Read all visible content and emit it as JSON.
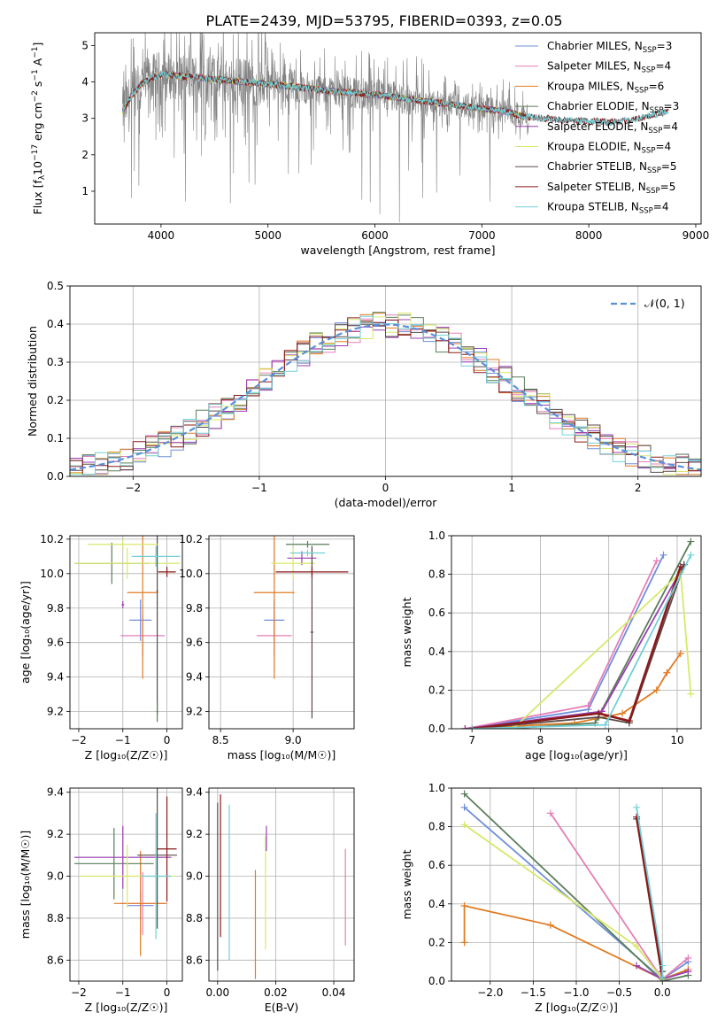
{
  "title": "PLATE=2439, MJD=53795, FIBERID=0393, z=0.05",
  "colors": {
    "Chabrier MILES": "#6f8fdc",
    "Salpeter MILES": "#e57fb7",
    "Kroupa MILES": "#e07b22",
    "Chabrier ELODIE": "#5a7d5a",
    "Salpeter ELODIE": "#9a3fb0",
    "Kroupa ELODIE": "#d8e86a",
    "Chabrier STELIB": "#5b4b4b",
    "Salpeter STELIB": "#8b1a1a",
    "Kroupa STELIB": "#72d0d6",
    "data": "#808080",
    "normal": "#5b8fd8"
  },
  "chart_data": [
    {
      "id": "spectrum",
      "type": "line",
      "xlabel": "wavelength [Angstrom, rest frame]",
      "ylabel_pre": "Flux [f",
      "ylabel_sub": "λ",
      "ylabel_post": "10",
      "ylabel_sup": "−17",
      "ylabel_tail": " erg cm",
      "ylabel_sup2": "−2",
      "ylabel_tail2": " s",
      "ylabel_sup3": "−1",
      "ylabel_tail3": " A",
      "ylabel_sup4": "−1",
      "ylabel_end": "]",
      "xlim": [
        3380,
        9050
      ],
      "ylim": [
        0.1,
        5.35
      ],
      "xticks": [
        4000,
        5000,
        6000,
        7000,
        8000,
        9000
      ],
      "xtick_labels": [
        "4000",
        "5000",
        "6000",
        "7000",
        "8000",
        "9000"
      ],
      "yticks": [
        1,
        2,
        3,
        4,
        5
      ],
      "ytick_labels": [
        "1",
        "2",
        "3",
        "4",
        "5"
      ],
      "continuum": [
        [
          3640,
          3.2
        ],
        [
          3700,
          3.5
        ],
        [
          3800,
          3.9
        ],
        [
          3900,
          4.1
        ],
        [
          4000,
          4.2
        ],
        [
          4200,
          4.15
        ],
        [
          4400,
          4.1
        ],
        [
          4600,
          4.05
        ],
        [
          4800,
          4.0
        ],
        [
          5000,
          3.95
        ],
        [
          5300,
          3.85
        ],
        [
          5600,
          3.75
        ],
        [
          6000,
          3.65
        ],
        [
          6400,
          3.5
        ],
        [
          6800,
          3.35
        ],
        [
          7200,
          3.2
        ],
        [
          7400,
          3.05
        ],
        [
          7800,
          2.95
        ],
        [
          8200,
          2.9
        ],
        [
          8400,
          2.95
        ],
        [
          8750,
          3.2
        ]
      ],
      "data_range": [
        3640,
        7440
      ],
      "models": [
        {
          "name": "Chabrier MILES",
          "label_pre": "Chabrier MILES, N",
          "label_sub": "SSP",
          "label_post": "=3"
        },
        {
          "name": "Salpeter MILES",
          "label_pre": "Salpeter MILES, N",
          "label_sub": "SSP",
          "label_post": "=4"
        },
        {
          "name": "Kroupa MILES",
          "label_pre": "Kroupa MILES, N",
          "label_sub": "SSP",
          "label_post": "=6"
        },
        {
          "name": "Chabrier ELODIE",
          "label_pre": "Chabrier ELODIE, N",
          "label_sub": "SSP",
          "label_post": "=3"
        },
        {
          "name": "Salpeter ELODIE",
          "label_pre": "Salpeter ELODIE, N",
          "label_sub": "SSP",
          "label_post": "=4"
        },
        {
          "name": "Kroupa ELODIE",
          "label_pre": "Kroupa ELODIE, N",
          "label_sub": "SSP",
          "label_post": "=4"
        },
        {
          "name": "Chabrier STELIB",
          "label_pre": "Chabrier STELIB, N",
          "label_sub": "SSP",
          "label_post": "=5"
        },
        {
          "name": "Salpeter STELIB",
          "label_pre": "Salpeter STELIB, N",
          "label_sub": "SSP",
          "label_post": "=5"
        },
        {
          "name": "Kroupa STELIB",
          "label_pre": "Kroupa STELIB, N",
          "label_sub": "SSP",
          "label_post": "=4"
        }
      ],
      "legend_placement": "right"
    },
    {
      "id": "residuals",
      "type": "histogram",
      "xlabel": "(data-model)/error",
      "ylabel": "Normed distribution",
      "xlim": [
        -2.5,
        2.5
      ],
      "ylim": [
        0,
        0.5
      ],
      "xticks": [
        -2,
        -1,
        0,
        1,
        2
      ],
      "xtick_labels": [
        "−2",
        "−1",
        "0",
        "1",
        "2"
      ],
      "yticks": [
        0,
        0.1,
        0.2,
        0.3,
        0.4,
        0.5
      ],
      "ytick_labels": [
        "0.0",
        "0.1",
        "0.2",
        "0.3",
        "0.4",
        "0.5"
      ],
      "grid": true,
      "bin_width": 0.1,
      "normal_curve": {
        "mean": 0,
        "sigma": 1,
        "label": "𝒩(0, 1)"
      },
      "legend_placement": "top-right"
    },
    {
      "id": "age-vs-Z",
      "type": "scatter",
      "xlabel": "Z [log₁₀(Z/Z☉)]",
      "ylabel": "age  [log₁₀(age/yr)]",
      "xlim": [
        -2.2,
        0.35
      ],
      "ylim": [
        9.1,
        10.22
      ],
      "xticks": [
        -2,
        -1,
        0
      ],
      "xtick_labels": [
        "−2",
        "−1",
        "0"
      ],
      "yticks": [
        9.2,
        9.4,
        9.6,
        9.8,
        10.0,
        10.2
      ],
      "ytick_labels": [
        "9.2",
        "9.4",
        "9.6",
        "9.8",
        "10.0",
        "10.2"
      ],
      "grid": true,
      "points": [
        {
          "model": "Chabrier MILES",
          "x": -0.6,
          "xerr": 0.25,
          "y": 9.73,
          "yerr": 0.12
        },
        {
          "model": "Salpeter MILES",
          "x": -0.55,
          "xerr": 0.5,
          "y": 9.64,
          "yerr": 0.12
        },
        {
          "model": "Kroupa MILES",
          "x": -0.55,
          "xerr": 0.35,
          "y": 9.89,
          "yerr": 0.5
        },
        {
          "model": "Chabrier ELODIE",
          "x": -1.25,
          "xerr": 0.85,
          "y": 10.06,
          "yerr": 0.12
        },
        {
          "model": "Salpeter ELODIE",
          "x": -1.0,
          "xerr": 0.03,
          "y": 9.82,
          "yerr": 0.02
        },
        {
          "model": "Kroupa ELODIE",
          "x": -0.9,
          "xerr": 1.2,
          "y": 10.06,
          "yerr": 0.09
        },
        {
          "model": "Chabrier STELIB",
          "x": -0.22,
          "xerr": 0.02,
          "y": 9.9,
          "yerr": 0.72
        },
        {
          "model": "Salpeter STELIB",
          "x": 0.0,
          "xerr": 0.2,
          "y": 10.01,
          "yerr": 0.03
        },
        {
          "model": "Kroupa STELIB",
          "x": -0.25,
          "xerr": 0.55,
          "y": 10.1,
          "yerr": 0.06
        },
        {
          "model": "Chabrier ELODIE",
          "x": -0.22,
          "xerr": 0.02,
          "y": 9.2,
          "yerr": 0.06
        },
        {
          "model": "Kroupa ELODIE",
          "x": -1.0,
          "xerr": 0.8,
          "y": 10.17,
          "yerr": 0.03
        }
      ]
    },
    {
      "id": "age-vs-mass",
      "type": "scatter",
      "xlabel": "mass [log₁₀(M/M☉)]",
      "ylabel": "",
      "xlim": [
        8.42,
        9.42
      ],
      "ylim": [
        9.1,
        10.22
      ],
      "xticks": [
        8.5,
        9.0
      ],
      "xtick_labels": [
        "8.5",
        "9.0"
      ],
      "yticks": [
        9.2,
        9.4,
        9.6,
        9.8,
        10.0,
        10.2
      ],
      "ytick_labels": [
        "9.2",
        "9.4",
        "9.6",
        "9.8",
        "10.0",
        "10.2"
      ],
      "grid": true,
      "points": [
        {
          "model": "Chabrier MILES",
          "x": 8.87,
          "xerr": 0.07,
          "y": 9.73,
          "yerr": 0.12
        },
        {
          "model": "Salpeter MILES",
          "x": 8.87,
          "xerr": 0.12,
          "y": 9.64,
          "yerr": 0.12
        },
        {
          "model": "Kroupa MILES",
          "x": 8.87,
          "xerr": 0.14,
          "y": 9.89,
          "yerr": 0.5
        },
        {
          "model": "Chabrier ELODIE",
          "x": 9.1,
          "xerr": 0.15,
          "y": 10.17,
          "yerr": 0.02
        },
        {
          "model": "Salpeter ELODIE",
          "x": 9.06,
          "xerr": 0.1,
          "y": 10.09,
          "yerr": 0.04
        },
        {
          "model": "Kroupa ELODIE",
          "x": 9.0,
          "xerr": 0.15,
          "y": 10.06,
          "yerr": 0.09
        },
        {
          "model": "Chabrier STELIB",
          "x": 9.13,
          "xerr": 0.01,
          "y": 9.66,
          "yerr": 0.5
        },
        {
          "model": "Salpeter STELIB",
          "x": 9.13,
          "xerr": 0.25,
          "y": 10.01,
          "yerr": 0.03
        },
        {
          "model": "Kroupa STELIB",
          "x": 9.1,
          "xerr": 0.12,
          "y": 10.12,
          "yerr": 0.02
        }
      ]
    },
    {
      "id": "weight-vs-age",
      "type": "line",
      "xlabel": "age  [log₁₀(age/yr)]",
      "ylabel": "mass weight",
      "xlim": [
        6.7,
        10.35
      ],
      "ylim": [
        0,
        1
      ],
      "xticks": [
        7,
        8,
        9,
        10
      ],
      "xtick_labels": [
        "7",
        "8",
        "9",
        "10"
      ],
      "yticks": [
        0,
        0.2,
        0.4,
        0.6,
        0.8,
        1.0
      ],
      "ytick_labels": [
        "0.0",
        "0.2",
        "0.4",
        "0.6",
        "0.8",
        "1.0"
      ],
      "grid": true,
      "series": [
        {
          "model": "Chabrier MILES",
          "points": [
            [
              6.9,
              0.0
            ],
            [
              8.7,
              0.1
            ],
            [
              9.8,
              0.9
            ]
          ]
        },
        {
          "model": "Salpeter MILES",
          "points": [
            [
              6.9,
              0.0
            ],
            [
              8.7,
              0.12
            ],
            [
              9.7,
              0.87
            ]
          ]
        },
        {
          "model": "Kroupa MILES",
          "points": [
            [
              6.9,
              0.0
            ],
            [
              8.5,
              0.03
            ],
            [
              9.2,
              0.08
            ],
            [
              9.7,
              0.2
            ],
            [
              9.85,
              0.29
            ],
            [
              10.05,
              0.39
            ]
          ]
        },
        {
          "model": "Chabrier ELODIE",
          "points": [
            [
              7.5,
              0.0
            ],
            [
              8.8,
              0.03
            ],
            [
              10.2,
              0.97
            ]
          ]
        },
        {
          "model": "Salpeter ELODIE",
          "points": [
            [
              6.9,
              0.0
            ],
            [
              8.9,
              0.09
            ],
            [
              10.1,
              0.85
            ]
          ]
        },
        {
          "model": "Kroupa ELODIE",
          "points": [
            [
              7.6,
              0.0
            ],
            [
              10.05,
              0.81
            ],
            [
              10.2,
              0.18
            ]
          ]
        },
        {
          "model": "Chabrier STELIB",
          "points": [
            [
              7.0,
              0.0
            ],
            [
              8.85,
              0.06
            ],
            [
              9.3,
              0.03
            ],
            [
              10.1,
              0.85
            ]
          ]
        },
        {
          "model": "Salpeter STELIB",
          "points": [
            [
              7.0,
              0.0
            ],
            [
              8.85,
              0.08
            ],
            [
              9.3,
              0.04
            ],
            [
              10.05,
              0.84
            ]
          ]
        },
        {
          "model": "Kroupa STELIB",
          "points": [
            [
              7.0,
              0.0
            ],
            [
              8.95,
              0.02
            ],
            [
              10.2,
              0.9
            ]
          ]
        }
      ]
    },
    {
      "id": "mass-vs-Z",
      "type": "scatter",
      "xlabel": "Z [log₁₀(Z/Z☉)]",
      "ylabel": "mass [log₁₀(M/M☉)]",
      "xlim": [
        -2.2,
        0.35
      ],
      "ylim": [
        8.5,
        9.42
      ],
      "xticks": [
        -2,
        -1,
        0
      ],
      "xtick_labels": [
        "−2",
        "−1",
        "0"
      ],
      "yticks": [
        8.6,
        8.8,
        9.0,
        9.2,
        9.4
      ],
      "ytick_labels": [
        "8.6",
        "8.8",
        "9.0",
        "9.2",
        "9.4"
      ],
      "grid": true,
      "points": [
        {
          "model": "Chabrier MILES",
          "x": -0.6,
          "xerr": 0.3,
          "y": 8.86,
          "yerr": 0.07
        },
        {
          "model": "Salpeter MILES",
          "x": -0.55,
          "xerr": 0.5,
          "y": 8.87,
          "yerr": 0.15
        },
        {
          "model": "Kroupa MILES",
          "x": -0.6,
          "xerr": 0.6,
          "y": 8.87,
          "yerr": 0.25
        },
        {
          "model": "Chabrier ELODIE",
          "x": -1.2,
          "xerr": 0.9,
          "y": 9.06,
          "yerr": 0.17
        },
        {
          "model": "Salpeter ELODIE",
          "x": -1.0,
          "xerr": 1.1,
          "y": 9.09,
          "yerr": 0.15
        },
        {
          "model": "Kroupa ELODIE",
          "x": -0.9,
          "xerr": 1.1,
          "y": 9.0,
          "yerr": 0.15
        },
        {
          "model": "Chabrier STELIB",
          "x": -0.22,
          "xerr": 0.45,
          "y": 9.1,
          "yerr": 0.35
        },
        {
          "model": "Salpeter STELIB",
          "x": 0.0,
          "xerr": 0.22,
          "y": 9.13,
          "yerr": 0.25
        },
        {
          "model": "Kroupa STELIB",
          "x": -0.25,
          "xerr": 0.35,
          "y": 9.0,
          "yerr": 0.3
        }
      ]
    },
    {
      "id": "mass-vs-ebv",
      "type": "scatter",
      "xlabel": "E(B-V)",
      "ylabel": "",
      "xlim": [
        -0.003,
        0.047
      ],
      "ylim": [
        8.5,
        9.42
      ],
      "xticks": [
        0.0,
        0.02,
        0.04
      ],
      "xtick_labels": [
        "0.00",
        "0.02",
        "0.04"
      ],
      "yticks": [
        8.6,
        8.8,
        9.0,
        9.2,
        9.4
      ],
      "ytick_labels": [
        "8.6",
        "8.8",
        "9.0",
        "9.2",
        "9.4"
      ],
      "grid": true,
      "points": [
        {
          "model": "Chabrier STELIB",
          "x": 0.0,
          "y": 8.95,
          "yerr": 0.4
        },
        {
          "model": "Salpeter STELIB",
          "x": 0.001,
          "y": 9.05,
          "yerr": 0.34
        },
        {
          "model": "Kroupa STELIB",
          "x": 0.004,
          "y": 8.97,
          "yerr": 0.37
        },
        {
          "model": "Kroupa MILES",
          "x": 0.013,
          "y": 8.77,
          "yerr": 0.26
        },
        {
          "model": "Kroupa ELODIE",
          "x": 0.0165,
          "y": 8.92,
          "yerr": 0.27
        },
        {
          "model": "Salpeter ELODIE",
          "x": 0.0168,
          "y": 9.18,
          "yerr": 0.06
        },
        {
          "model": "Salpeter MILES",
          "x": 0.044,
          "y": 8.9,
          "yerr": 0.23
        }
      ]
    },
    {
      "id": "weight-vs-Z",
      "type": "line",
      "xlabel": "Z [log₁₀(Z/Z☉)]",
      "ylabel": "mass weight",
      "xlim": [
        -2.45,
        0.45
      ],
      "ylim": [
        0,
        1
      ],
      "xticks": [
        -2.0,
        -1.5,
        -1.0,
        -0.5,
        0.0
      ],
      "xtick_labels": [
        "−2.0",
        "−1.5",
        "−1.0",
        "−0.5",
        "0.0"
      ],
      "yticks": [
        0,
        0.2,
        0.4,
        0.6,
        0.8,
        1.0
      ],
      "ytick_labels": [
        "0.0",
        "0.2",
        "0.4",
        "0.6",
        "0.8",
        "1.0"
      ],
      "grid": true,
      "series": [
        {
          "model": "Chabrier MILES",
          "points": [
            [
              -2.3,
              0.9
            ],
            [
              0.0,
              0.01
            ],
            [
              0.3,
              0.1
            ]
          ]
        },
        {
          "model": "Salpeter MILES",
          "points": [
            [
              -1.3,
              0.87
            ],
            [
              0.0,
              0.01
            ],
            [
              0.3,
              0.12
            ]
          ]
        },
        {
          "model": "Kroupa MILES",
          "points": [
            [
              -2.3,
              0.2
            ],
            [
              -2.3,
              0.39
            ],
            [
              -1.3,
              0.29
            ],
            [
              0.0,
              0.01
            ],
            [
              0.3,
              0.06
            ]
          ]
        },
        {
          "model": "Chabrier ELODIE",
          "points": [
            [
              -2.3,
              0.97
            ],
            [
              0.0,
              0.0
            ],
            [
              0.3,
              0.03
            ]
          ]
        },
        {
          "model": "Salpeter ELODIE",
          "points": [
            [
              -0.3,
              0.08
            ],
            [
              0.0,
              0.01
            ],
            [
              0.3,
              0.05
            ]
          ]
        },
        {
          "model": "Kroupa ELODIE",
          "points": [
            [
              -2.3,
              0.81
            ],
            [
              -0.3,
              0.18
            ],
            [
              0.0,
              0.01
            ]
          ]
        },
        {
          "model": "Chabrier STELIB",
          "points": [
            [
              -0.3,
              0.84
            ],
            [
              0.0,
              0.05
            ],
            [
              0.0,
              0.02
            ]
          ]
        },
        {
          "model": "Salpeter STELIB",
          "points": [
            [
              -0.3,
              0.85
            ],
            [
              0.0,
              0.02
            ]
          ]
        },
        {
          "model": "Kroupa STELIB",
          "points": [
            [
              -0.3,
              0.9
            ],
            [
              0.0,
              0.08
            ],
            [
              0.0,
              0.02
            ]
          ]
        }
      ]
    }
  ]
}
